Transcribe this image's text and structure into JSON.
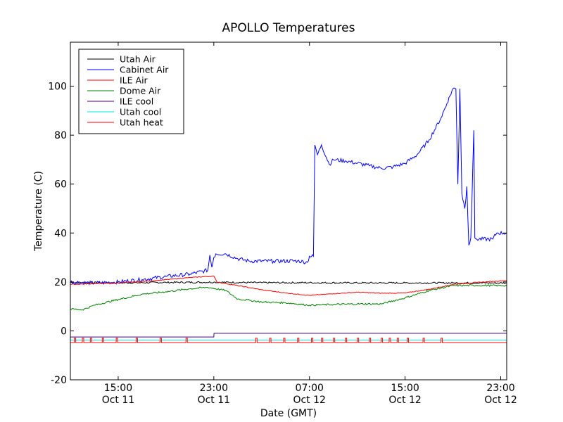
{
  "chart_data": {
    "type": "line",
    "title": "APOLLO Temperatures",
    "xlabel": "Date (GMT)",
    "ylabel": "Temperature (C)",
    "xlim": [
      "2011-10-11T11:00",
      "2011-10-12T23:30"
    ],
    "ylim": [
      -20,
      118
    ],
    "grid": false,
    "legend_position": "top-left",
    "xticks": [
      {
        "t": "2011-10-11T15:00",
        "time": "15:00",
        "date": "Oct 11"
      },
      {
        "t": "2011-10-11T23:00",
        "time": "23:00",
        "date": "Oct 11"
      },
      {
        "t": "2011-10-12T07:00",
        "time": "07:00",
        "date": "Oct 12"
      },
      {
        "t": "2011-10-12T15:00",
        "time": "15:00",
        "date": "Oct 12"
      },
      {
        "t": "2011-10-12T23:00",
        "time": "23:00",
        "date": "Oct 12"
      }
    ],
    "yticks": [
      -20,
      0,
      20,
      40,
      60,
      80,
      100
    ],
    "series": [
      {
        "name": "Utah Air",
        "color": "#000000",
        "noise": 0.35,
        "points": [
          [
            "2011-10-11T11:00",
            19.8
          ],
          [
            "2011-10-11T15:00",
            19.6
          ],
          [
            "2011-10-11T19:00",
            19.8
          ],
          [
            "2011-10-11T23:00",
            19.9
          ],
          [
            "2011-10-12T03:00",
            19.7
          ],
          [
            "2011-10-12T07:00",
            19.7
          ],
          [
            "2011-10-12T11:00",
            19.6
          ],
          [
            "2011-10-12T15:00",
            19.6
          ],
          [
            "2011-10-12T19:00",
            19.6
          ],
          [
            "2011-10-12T23:30",
            19.6
          ]
        ]
      },
      {
        "name": "Cabinet Air",
        "color": "#0000ff",
        "noise": 0.8,
        "points": [
          [
            "2011-10-11T11:00",
            20
          ],
          [
            "2011-10-11T13:00",
            19.5
          ],
          [
            "2011-10-11T15:00",
            20
          ],
          [
            "2011-10-11T17:00",
            21
          ],
          [
            "2011-10-11T19:00",
            22.2
          ],
          [
            "2011-10-11T21:00",
            23.2
          ],
          [
            "2011-10-11T22:30",
            24.8
          ],
          [
            "2011-10-11T22:40",
            31
          ],
          [
            "2011-10-11T22:50",
            26
          ],
          [
            "2011-10-11T23:00",
            30
          ],
          [
            "2011-10-11T23:10",
            31.5
          ],
          [
            "2011-10-12T00:00",
            31.5
          ],
          [
            "2011-10-12T01:00",
            29.5
          ],
          [
            "2011-10-12T02:00",
            28.5
          ],
          [
            "2011-10-12T04:00",
            28.5
          ],
          [
            "2011-10-12T06:00",
            28.6
          ],
          [
            "2011-10-12T06:50",
            28
          ],
          [
            "2011-10-12T07:00",
            30.5
          ],
          [
            "2011-10-12T07:20",
            30.5
          ],
          [
            "2011-10-12T07:27",
            76
          ],
          [
            "2011-10-12T07:40",
            72
          ],
          [
            "2011-10-12T08:00",
            76
          ],
          [
            "2011-10-12T08:40",
            68
          ],
          [
            "2011-10-12T09:00",
            70
          ],
          [
            "2011-10-12T10:00",
            69.5
          ],
          [
            "2011-10-12T11:00",
            68.5
          ],
          [
            "2011-10-12T12:00",
            67.5
          ],
          [
            "2011-10-12T13:00",
            66.5
          ],
          [
            "2011-10-12T14:00",
            67
          ],
          [
            "2011-10-12T15:00",
            68.5
          ],
          [
            "2011-10-12T16:00",
            72
          ],
          [
            "2011-10-12T17:00",
            78
          ],
          [
            "2011-10-12T18:00",
            87
          ],
          [
            "2011-10-12T18:30",
            93
          ],
          [
            "2011-10-12T19:00",
            99
          ],
          [
            "2011-10-12T19:15",
            99
          ],
          [
            "2011-10-12T19:25",
            60
          ],
          [
            "2011-10-12T19:35",
            99
          ],
          [
            "2011-10-12T19:45",
            56
          ],
          [
            "2011-10-12T20:00",
            50
          ],
          [
            "2011-10-12T20:10",
            59
          ],
          [
            "2011-10-12T20:20",
            35
          ],
          [
            "2011-10-12T20:30",
            38
          ],
          [
            "2011-10-12T20:45",
            82
          ],
          [
            "2011-10-12T20:50",
            38
          ],
          [
            "2011-10-12T21:00",
            37.5
          ],
          [
            "2011-10-12T22:20",
            37.5
          ],
          [
            "2011-10-12T22:40",
            40
          ],
          [
            "2011-10-12T23:30",
            40
          ]
        ]
      },
      {
        "name": "ILE Air",
        "color": "#ff0000",
        "noise": 0.15,
        "points": [
          [
            "2011-10-11T11:00",
            19
          ],
          [
            "2011-10-11T15:00",
            19.6
          ],
          [
            "2011-10-11T18:00",
            20.5
          ],
          [
            "2011-10-11T21:00",
            21.8
          ],
          [
            "2011-10-11T23:00",
            22.4
          ],
          [
            "2011-10-11T23:15",
            20
          ],
          [
            "2011-10-12T01:00",
            18.5
          ],
          [
            "2011-10-12T03:00",
            16.8
          ],
          [
            "2011-10-12T05:00",
            15.5
          ],
          [
            "2011-10-12T07:00",
            14.5
          ],
          [
            "2011-10-12T09:00",
            15.2
          ],
          [
            "2011-10-12T11:00",
            15.8
          ],
          [
            "2011-10-12T13:00",
            15.4
          ],
          [
            "2011-10-12T15:00",
            15.5
          ],
          [
            "2011-10-12T17:00",
            17
          ],
          [
            "2011-10-12T19:00",
            19
          ],
          [
            "2011-10-12T21:00",
            19.8
          ],
          [
            "2011-10-12T23:30",
            20.6
          ]
        ]
      },
      {
        "name": "Dome Air",
        "color": "#008000",
        "noise": 0.35,
        "points": [
          [
            "2011-10-11T11:00",
            9
          ],
          [
            "2011-10-11T12:00",
            8.6
          ],
          [
            "2011-10-11T13:00",
            10.5
          ],
          [
            "2011-10-11T15:00",
            12.8
          ],
          [
            "2011-10-11T17:00",
            15
          ],
          [
            "2011-10-11T19:00",
            16
          ],
          [
            "2011-10-11T21:00",
            17.2
          ],
          [
            "2011-10-11T22:30",
            17.8
          ],
          [
            "2011-10-12T00:00",
            16.5
          ],
          [
            "2011-10-12T01:00",
            13
          ],
          [
            "2011-10-12T02:00",
            12.5
          ],
          [
            "2011-10-12T03:00",
            11.8
          ],
          [
            "2011-10-12T05:00",
            11.5
          ],
          [
            "2011-10-12T07:00",
            10.5
          ],
          [
            "2011-10-12T09:00",
            10.8
          ],
          [
            "2011-10-12T11:00",
            11
          ],
          [
            "2011-10-12T13:00",
            11
          ],
          [
            "2011-10-12T15:00",
            13.5
          ],
          [
            "2011-10-12T17:00",
            16.5
          ],
          [
            "2011-10-12T19:00",
            18.5
          ],
          [
            "2011-10-12T21:00",
            18.6
          ],
          [
            "2011-10-12T23:30",
            18.5
          ]
        ]
      },
      {
        "name": "ILE cool",
        "color": "#400080",
        "noise": 0,
        "points": [
          [
            "2011-10-11T11:00",
            -2.5
          ],
          [
            "2011-10-11T23:00",
            -2.5
          ],
          [
            "2011-10-11T23:01",
            -1
          ],
          [
            "2011-10-12T23:30",
            -1
          ]
        ]
      },
      {
        "name": "Utah cool",
        "color": "#00e5e5",
        "noise": 0,
        "points": [
          [
            "2011-10-11T11:00",
            -3.8
          ],
          [
            "2011-10-12T23:30",
            -3.8
          ]
        ]
      },
      {
        "name": "Utah heat",
        "color": "#ff0000",
        "noise": 0,
        "pulses": true,
        "points": [
          [
            "2011-10-11T11:00",
            -4.8
          ],
          [
            "2011-10-12T23:30",
            -4.8
          ]
        ]
      }
    ]
  }
}
